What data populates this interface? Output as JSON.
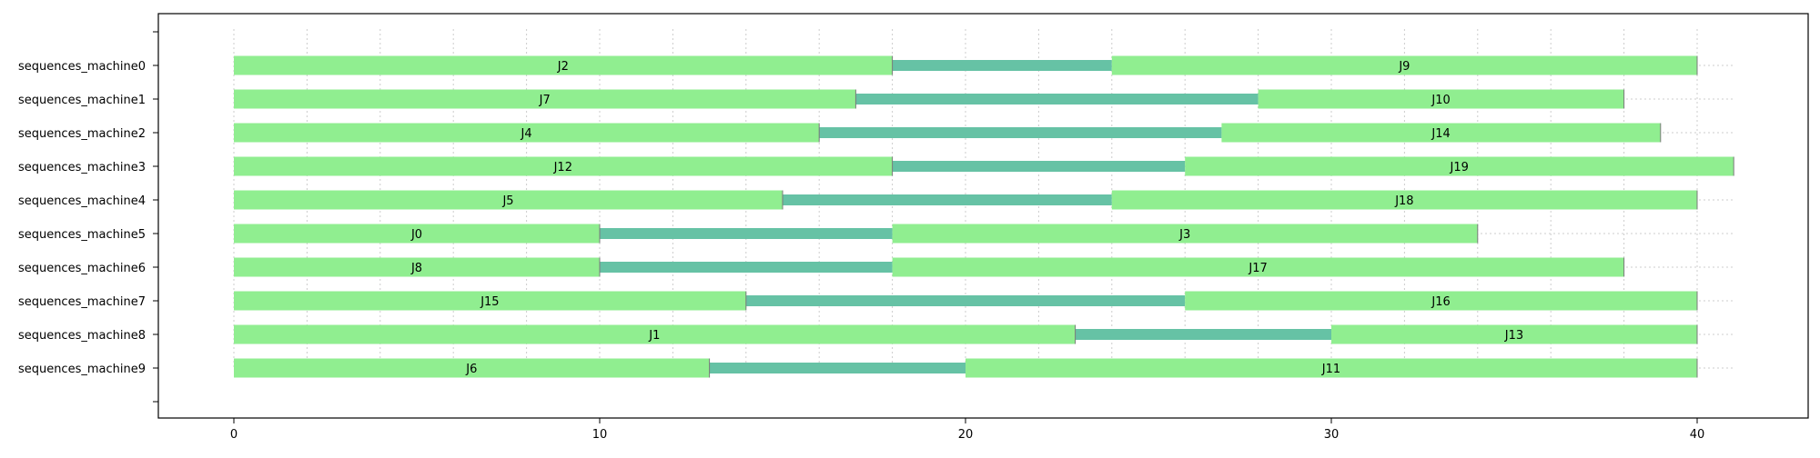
{
  "chart_data": {
    "type": "gantt",
    "title": "",
    "xlabel": "",
    "ylabel": "",
    "xlim": [
      -2,
      43
    ],
    "xticks": [
      0,
      10,
      20,
      30,
      40
    ],
    "grid": {
      "x_minor_step": 2,
      "x_extent": [
        0,
        41
      ],
      "style": "dotted"
    },
    "colors": {
      "job_bar": "#90ee90",
      "idle_gap": "#66c2a5",
      "frame": "#000000",
      "grid": "#cccccc"
    },
    "machines": [
      {
        "name": "sequences_machine0",
        "jobs": [
          {
            "label": "J2",
            "start": 0,
            "end": 18
          },
          {
            "label": "J9",
            "start": 24,
            "end": 40
          }
        ],
        "gaps": [
          {
            "start": 18,
            "end": 24
          }
        ]
      },
      {
        "name": "sequences_machine1",
        "jobs": [
          {
            "label": "J7",
            "start": 0,
            "end": 17
          },
          {
            "label": "J10",
            "start": 28,
            "end": 38
          }
        ],
        "gaps": [
          {
            "start": 17,
            "end": 28
          }
        ]
      },
      {
        "name": "sequences_machine2",
        "jobs": [
          {
            "label": "J4",
            "start": 0,
            "end": 16
          },
          {
            "label": "J14",
            "start": 27,
            "end": 39
          }
        ],
        "gaps": [
          {
            "start": 16,
            "end": 27
          }
        ]
      },
      {
        "name": "sequences_machine3",
        "jobs": [
          {
            "label": "J12",
            "start": 0,
            "end": 18
          },
          {
            "label": "J19",
            "start": 26,
            "end": 41
          }
        ],
        "gaps": [
          {
            "start": 18,
            "end": 26
          }
        ]
      },
      {
        "name": "sequences_machine4",
        "jobs": [
          {
            "label": "J5",
            "start": 0,
            "end": 15
          },
          {
            "label": "J18",
            "start": 24,
            "end": 40
          }
        ],
        "gaps": [
          {
            "start": 15,
            "end": 24
          }
        ]
      },
      {
        "name": "sequences_machine5",
        "jobs": [
          {
            "label": "J0",
            "start": 0,
            "end": 10
          },
          {
            "label": "J3",
            "start": 18,
            "end": 34
          }
        ],
        "gaps": [
          {
            "start": 10,
            "end": 18
          }
        ]
      },
      {
        "name": "sequences_machine6",
        "jobs": [
          {
            "label": "J8",
            "start": 0,
            "end": 10
          },
          {
            "label": "J17",
            "start": 18,
            "end": 38
          }
        ],
        "gaps": [
          {
            "start": 10,
            "end": 18
          }
        ]
      },
      {
        "name": "sequences_machine7",
        "jobs": [
          {
            "label": "J15",
            "start": 0,
            "end": 14
          },
          {
            "label": "J16",
            "start": 26,
            "end": 40
          }
        ],
        "gaps": [
          {
            "start": 14,
            "end": 26
          }
        ]
      },
      {
        "name": "sequences_machine8",
        "jobs": [
          {
            "label": "J1",
            "start": 0,
            "end": 23
          },
          {
            "label": "J13",
            "start": 30,
            "end": 40
          }
        ],
        "gaps": [
          {
            "start": 23,
            "end": 30
          }
        ]
      },
      {
        "name": "sequences_machine9",
        "jobs": [
          {
            "label": "J6",
            "start": 0,
            "end": 13
          },
          {
            "label": "J11",
            "start": 20,
            "end": 40
          }
        ],
        "gaps": [
          {
            "start": 13,
            "end": 20
          }
        ]
      }
    ]
  }
}
